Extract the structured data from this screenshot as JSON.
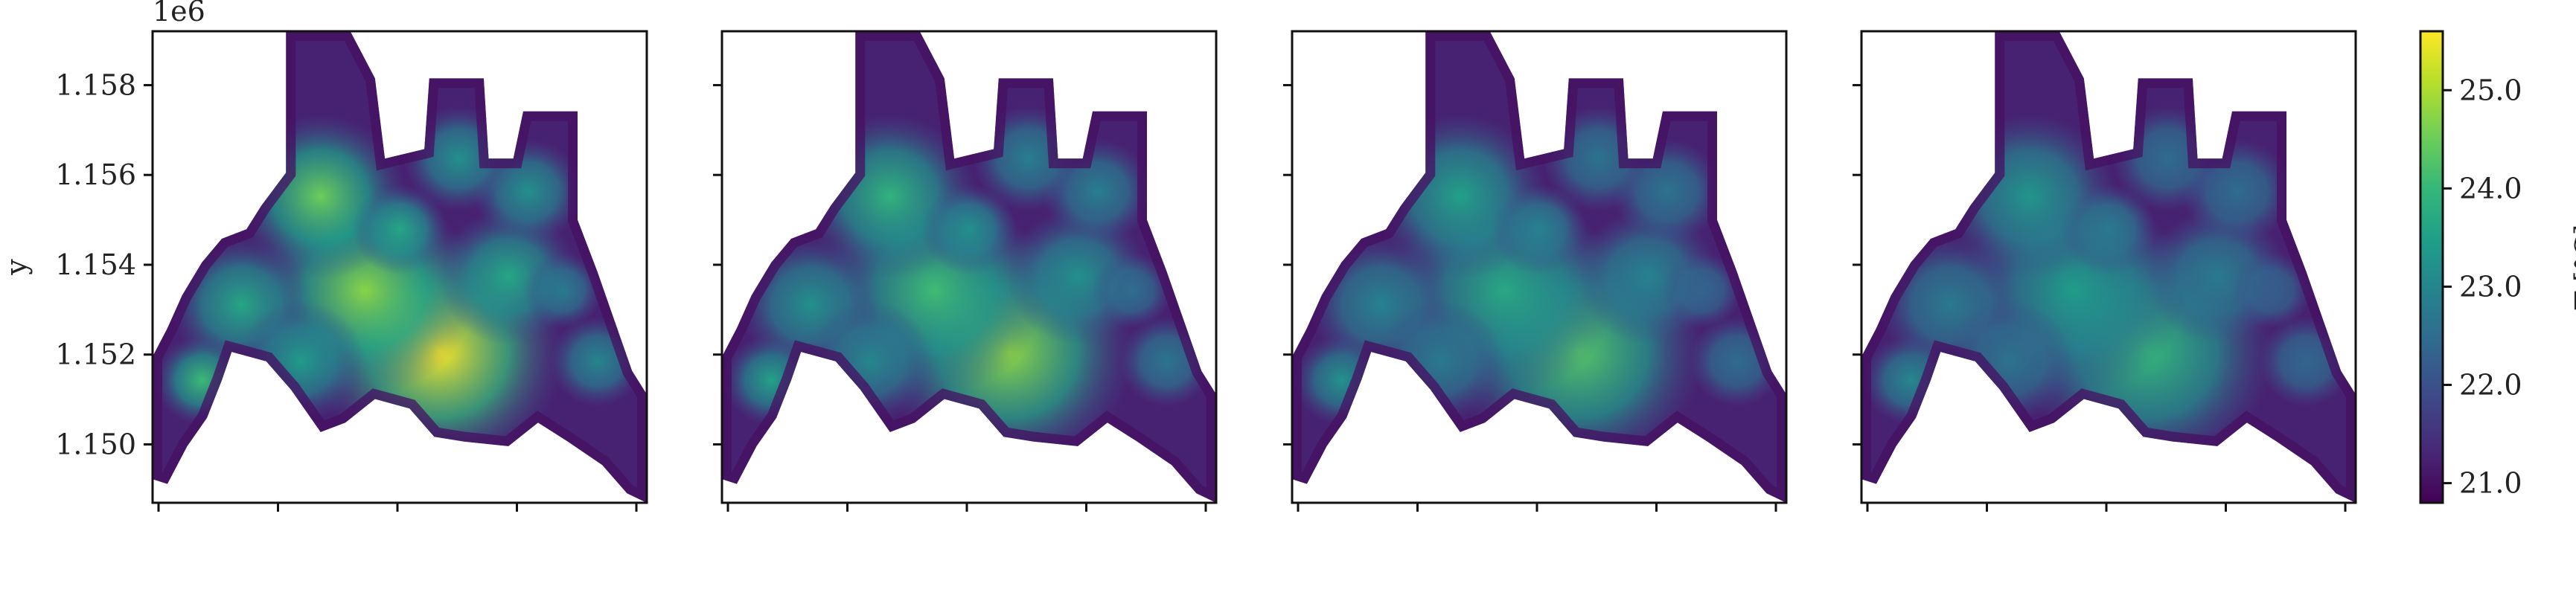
{
  "chart_data": [
    {
      "type": "heatmap",
      "panel": 1,
      "ylabel": "y",
      "y_offset_label": "1e6",
      "ylim": [
        1.1487,
        1.1592
      ],
      "yticks": [
        "1.150",
        "1.152",
        "1.154",
        "1.156",
        "1.158"
      ],
      "ytick_values": [
        1.15,
        1.152,
        1.154,
        1.156,
        1.158
      ],
      "xtick_labels": [
        "",
        "",
        "",
        "",
        ""
      ],
      "peak_temperature": 25.6,
      "min_temperature": 20.8
    },
    {
      "type": "heatmap",
      "panel": 2,
      "ylim": [
        1.1487,
        1.1592
      ],
      "yticks": [
        "",
        "",
        "",
        "",
        ""
      ],
      "ytick_values": [
        1.15,
        1.152,
        1.154,
        1.156,
        1.158
      ],
      "xtick_labels": [
        "",
        "",
        "",
        "",
        ""
      ],
      "peak_temperature": 24.8,
      "min_temperature": 20.8
    },
    {
      "type": "heatmap",
      "panel": 3,
      "ylim": [
        1.1487,
        1.1592
      ],
      "yticks": [
        "",
        "",
        "",
        "",
        ""
      ],
      "ytick_values": [
        1.15,
        1.152,
        1.154,
        1.156,
        1.158
      ],
      "xtick_labels": [
        "",
        "",
        "",
        "",
        ""
      ],
      "peak_temperature": 24.3,
      "min_temperature": 20.8
    },
    {
      "type": "heatmap",
      "panel": 4,
      "ylim": [
        1.1487,
        1.1592
      ],
      "yticks": [
        "",
        "",
        "",
        "",
        ""
      ],
      "ytick_values": [
        1.15,
        1.152,
        1.154,
        1.156,
        1.158
      ],
      "xtick_labels": [
        "",
        "",
        "",
        "",
        ""
      ],
      "peak_temperature": 24.0,
      "min_temperature": 20.8
    }
  ],
  "colorbar": {
    "label": "T [°C]",
    "label_math": "T [°C]",
    "range": [
      20.8,
      25.6
    ],
    "ticks": [
      21.0,
      22.0,
      23.0,
      24.0,
      25.0
    ],
    "tick_labels": [
      "21.0",
      "22.0",
      "23.0",
      "24.0",
      "25.0"
    ],
    "colormap": [
      "#440154",
      "#482878",
      "#3e4989",
      "#31688e",
      "#26828e",
      "#1f9e89",
      "#35b779",
      "#6ece58",
      "#b5de2b",
      "#fde725"
    ]
  }
}
